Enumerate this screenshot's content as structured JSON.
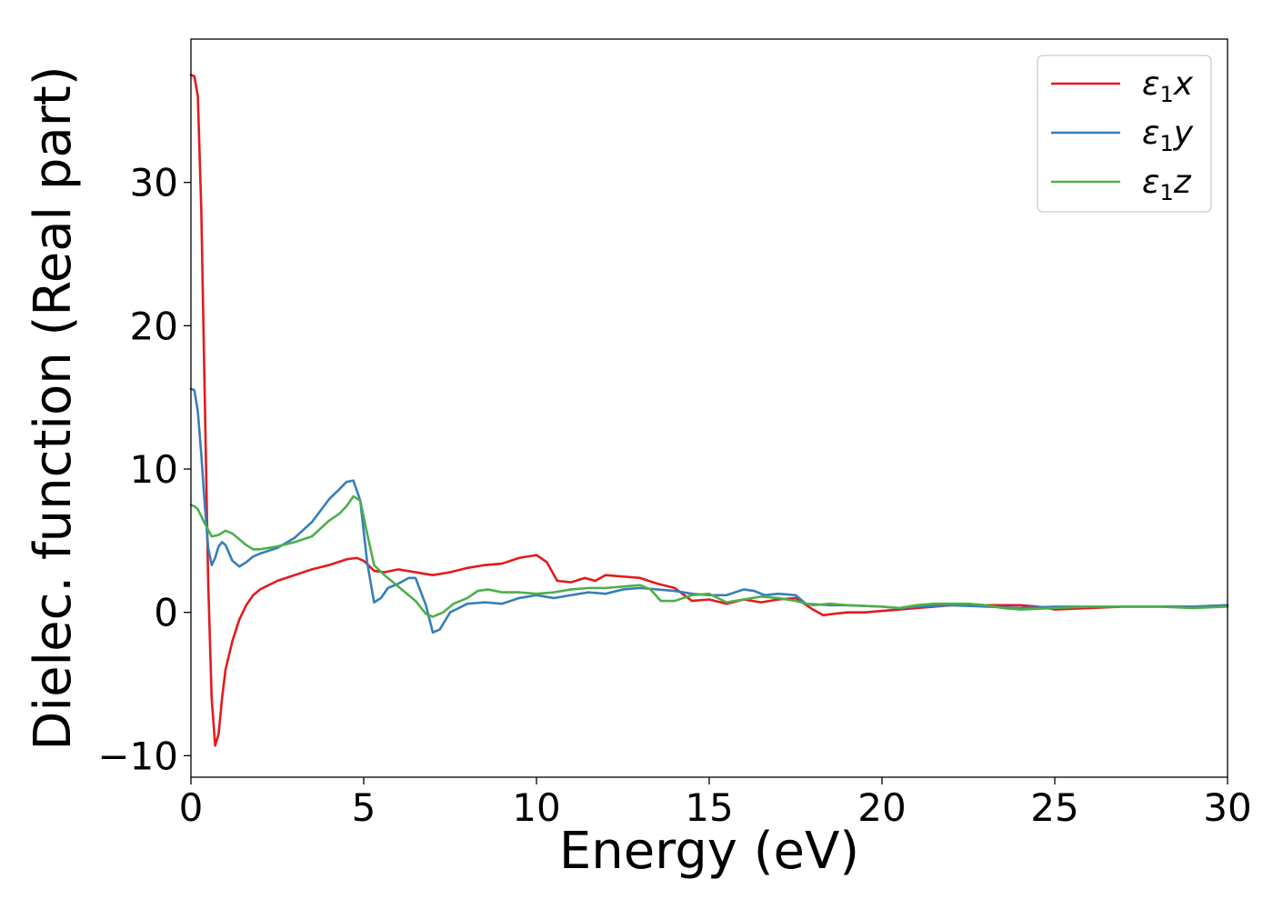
{
  "chart_data": {
    "type": "line",
    "title": "",
    "xlabel": "Energy (eV)",
    "ylabel": "Dielec. function (Real part)",
    "xlim": [
      0,
      30
    ],
    "ylim": [
      -11.5,
      40
    ],
    "xticks": [
      0,
      5,
      10,
      15,
      20,
      25,
      30
    ],
    "yticks": [
      -10,
      0,
      10,
      20,
      30
    ],
    "grid": false,
    "legend_position": "top-right",
    "series": [
      {
        "name": "ε1x",
        "legend_main": "ε",
        "legend_sub": "1",
        "legend_tail": "x",
        "color": "#e41a1c",
        "points": [
          [
            0,
            37.5
          ],
          [
            0.1,
            37.4
          ],
          [
            0.2,
            36
          ],
          [
            0.3,
            28
          ],
          [
            0.4,
            15
          ],
          [
            0.5,
            2
          ],
          [
            0.6,
            -6
          ],
          [
            0.7,
            -9.3
          ],
          [
            0.8,
            -8.5
          ],
          [
            0.9,
            -6
          ],
          [
            1.0,
            -4
          ],
          [
            1.2,
            -2
          ],
          [
            1.4,
            -0.5
          ],
          [
            1.6,
            0.5
          ],
          [
            1.8,
            1.2
          ],
          [
            2.0,
            1.6
          ],
          [
            2.5,
            2.2
          ],
          [
            3.0,
            2.6
          ],
          [
            3.5,
            3.0
          ],
          [
            4.0,
            3.3
          ],
          [
            4.5,
            3.7
          ],
          [
            4.8,
            3.8
          ],
          [
            5.0,
            3.6
          ],
          [
            5.3,
            2.9
          ],
          [
            5.6,
            2.8
          ],
          [
            6.0,
            3.0
          ],
          [
            6.5,
            2.8
          ],
          [
            7.0,
            2.6
          ],
          [
            7.5,
            2.8
          ],
          [
            8.0,
            3.1
          ],
          [
            8.5,
            3.3
          ],
          [
            9.0,
            3.4
          ],
          [
            9.5,
            3.8
          ],
          [
            10.0,
            4.0
          ],
          [
            10.3,
            3.5
          ],
          [
            10.6,
            2.2
          ],
          [
            11.0,
            2.1
          ],
          [
            11.4,
            2.4
          ],
          [
            11.7,
            2.2
          ],
          [
            12.0,
            2.6
          ],
          [
            12.5,
            2.5
          ],
          [
            13.0,
            2.4
          ],
          [
            13.5,
            2.0
          ],
          [
            14.0,
            1.7
          ],
          [
            14.5,
            0.8
          ],
          [
            15.0,
            0.9
          ],
          [
            15.5,
            0.6
          ],
          [
            16.0,
            0.9
          ],
          [
            16.5,
            0.7
          ],
          [
            17.0,
            0.9
          ],
          [
            17.5,
            1.0
          ],
          [
            18.0,
            0.2
          ],
          [
            18.3,
            -0.2
          ],
          [
            18.6,
            -0.1
          ],
          [
            19.0,
            0.0
          ],
          [
            19.5,
            0.0
          ],
          [
            20.0,
            0.1
          ],
          [
            20.5,
            0.2
          ],
          [
            21.0,
            0.3
          ],
          [
            22.0,
            0.5
          ],
          [
            23.0,
            0.5
          ],
          [
            24.0,
            0.5
          ],
          [
            24.5,
            0.4
          ],
          [
            25.0,
            0.2
          ],
          [
            26.0,
            0.3
          ],
          [
            27.0,
            0.4
          ],
          [
            28.0,
            0.4
          ],
          [
            29.0,
            0.4
          ],
          [
            30.0,
            0.5
          ]
        ]
      },
      {
        "name": "ε1y",
        "legend_main": "ε",
        "legend_sub": "1",
        "legend_tail": "y",
        "color": "#377eb8",
        "points": [
          [
            0,
            15.6
          ],
          [
            0.1,
            15.5
          ],
          [
            0.2,
            14
          ],
          [
            0.3,
            11
          ],
          [
            0.4,
            7.5
          ],
          [
            0.5,
            4.5
          ],
          [
            0.6,
            3.3
          ],
          [
            0.7,
            3.8
          ],
          [
            0.8,
            4.6
          ],
          [
            0.9,
            4.9
          ],
          [
            1.0,
            4.7
          ],
          [
            1.2,
            3.6
          ],
          [
            1.4,
            3.2
          ],
          [
            1.6,
            3.5
          ],
          [
            1.8,
            3.9
          ],
          [
            2.0,
            4.1
          ],
          [
            2.5,
            4.5
          ],
          [
            3.0,
            5.2
          ],
          [
            3.5,
            6.3
          ],
          [
            4.0,
            7.9
          ],
          [
            4.3,
            8.6
          ],
          [
            4.5,
            9.1
          ],
          [
            4.7,
            9.2
          ],
          [
            4.9,
            7.8
          ],
          [
            5.1,
            3.5
          ],
          [
            5.3,
            0.7
          ],
          [
            5.5,
            1.0
          ],
          [
            5.7,
            1.7
          ],
          [
            6.0,
            2.0
          ],
          [
            6.3,
            2.4
          ],
          [
            6.5,
            2.4
          ],
          [
            6.8,
            0.5
          ],
          [
            7.0,
            -1.4
          ],
          [
            7.2,
            -1.2
          ],
          [
            7.5,
            0.0
          ],
          [
            8.0,
            0.6
          ],
          [
            8.5,
            0.7
          ],
          [
            9.0,
            0.6
          ],
          [
            9.5,
            1.0
          ],
          [
            10.0,
            1.2
          ],
          [
            10.5,
            1.0
          ],
          [
            11.0,
            1.2
          ],
          [
            11.5,
            1.4
          ],
          [
            12.0,
            1.3
          ],
          [
            12.5,
            1.6
          ],
          [
            13.0,
            1.7
          ],
          [
            13.5,
            1.6
          ],
          [
            14.0,
            1.5
          ],
          [
            14.5,
            1.3
          ],
          [
            15.0,
            1.2
          ],
          [
            15.5,
            1.2
          ],
          [
            16.0,
            1.6
          ],
          [
            16.3,
            1.5
          ],
          [
            16.6,
            1.2
          ],
          [
            17.0,
            1.3
          ],
          [
            17.5,
            1.2
          ],
          [
            17.8,
            0.6
          ],
          [
            18.5,
            0.5
          ],
          [
            19.0,
            0.5
          ],
          [
            20.0,
            0.4
          ],
          [
            20.5,
            0.3
          ],
          [
            21.0,
            0.4
          ],
          [
            22.0,
            0.5
          ],
          [
            23.0,
            0.4
          ],
          [
            24.0,
            0.3
          ],
          [
            25.0,
            0.4
          ],
          [
            26.0,
            0.4
          ],
          [
            27.0,
            0.4
          ],
          [
            28.0,
            0.4
          ],
          [
            29.0,
            0.4
          ],
          [
            30.0,
            0.5
          ]
        ]
      },
      {
        "name": "ε1z",
        "legend_main": "ε",
        "legend_sub": "1",
        "legend_tail": "z",
        "color": "#4daf4a",
        "points": [
          [
            0,
            7.5
          ],
          [
            0.1,
            7.4
          ],
          [
            0.2,
            7.2
          ],
          [
            0.4,
            6.2
          ],
          [
            0.6,
            5.3
          ],
          [
            0.8,
            5.4
          ],
          [
            1.0,
            5.7
          ],
          [
            1.2,
            5.5
          ],
          [
            1.4,
            5.1
          ],
          [
            1.6,
            4.7
          ],
          [
            1.8,
            4.4
          ],
          [
            2.0,
            4.4
          ],
          [
            2.5,
            4.6
          ],
          [
            3.0,
            4.9
          ],
          [
            3.5,
            5.3
          ],
          [
            4.0,
            6.4
          ],
          [
            4.3,
            6.9
          ],
          [
            4.5,
            7.4
          ],
          [
            4.7,
            8.1
          ],
          [
            4.9,
            7.8
          ],
          [
            5.1,
            5.5
          ],
          [
            5.3,
            3.3
          ],
          [
            5.6,
            2.6
          ],
          [
            6.0,
            1.8
          ],
          [
            6.5,
            0.8
          ],
          [
            6.8,
            -0.1
          ],
          [
            7.0,
            -0.3
          ],
          [
            7.3,
            0.0
          ],
          [
            7.6,
            0.6
          ],
          [
            8.0,
            1.0
          ],
          [
            8.3,
            1.5
          ],
          [
            8.6,
            1.6
          ],
          [
            9.0,
            1.4
          ],
          [
            9.5,
            1.4
          ],
          [
            10.0,
            1.3
          ],
          [
            10.5,
            1.4
          ],
          [
            11.0,
            1.6
          ],
          [
            11.5,
            1.7
          ],
          [
            12.0,
            1.7
          ],
          [
            12.5,
            1.8
          ],
          [
            13.0,
            1.9
          ],
          [
            13.3,
            1.6
          ],
          [
            13.6,
            0.8
          ],
          [
            14.0,
            0.8
          ],
          [
            14.5,
            1.2
          ],
          [
            15.0,
            1.3
          ],
          [
            15.5,
            0.7
          ],
          [
            16.0,
            0.9
          ],
          [
            16.5,
            1.1
          ],
          [
            17.0,
            1.0
          ],
          [
            17.5,
            0.8
          ],
          [
            18.0,
            0.5
          ],
          [
            18.5,
            0.6
          ],
          [
            19.0,
            0.5
          ],
          [
            20.0,
            0.4
          ],
          [
            20.5,
            0.3
          ],
          [
            21.0,
            0.5
          ],
          [
            21.5,
            0.6
          ],
          [
            22.0,
            0.6
          ],
          [
            22.5,
            0.6
          ],
          [
            23.0,
            0.5
          ],
          [
            23.5,
            0.3
          ],
          [
            24.0,
            0.2
          ],
          [
            25.0,
            0.3
          ],
          [
            26.0,
            0.4
          ],
          [
            27.0,
            0.4
          ],
          [
            28.0,
            0.4
          ],
          [
            29.0,
            0.3
          ],
          [
            30.0,
            0.4
          ]
        ]
      }
    ]
  }
}
